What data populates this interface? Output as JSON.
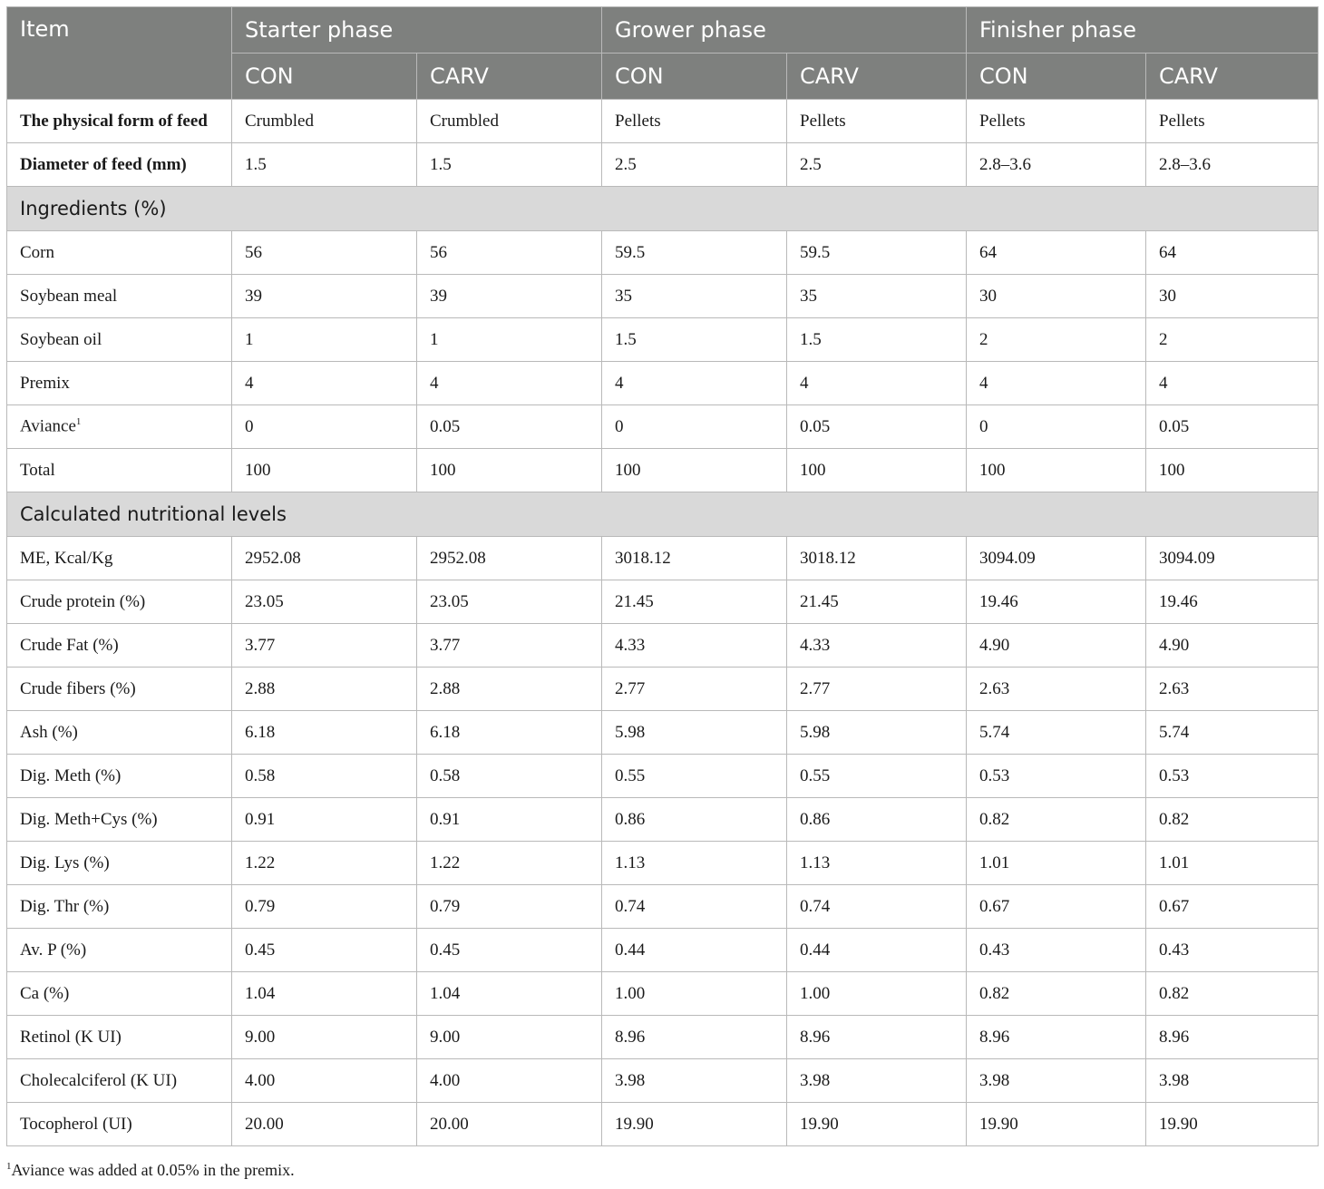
{
  "header": {
    "item": "Item",
    "phases": [
      "Starter phase",
      "Grower phase",
      "Finisher phase"
    ],
    "groups": [
      "CON",
      "CARV",
      "CON",
      "CARV",
      "CON",
      "CARV"
    ]
  },
  "feed_rows": [
    {
      "label": "The physical form of feed",
      "values": [
        "Crumbled",
        "Crumbled",
        "Pellets",
        "Pellets",
        "Pellets",
        "Pellets"
      ]
    },
    {
      "label": "Diameter of feed (mm)",
      "values": [
        "1.5",
        "1.5",
        "2.5",
        "2.5",
        "2.8–3.6",
        "2.8–3.6"
      ]
    }
  ],
  "sections": {
    "ingredients": "Ingredients (%)",
    "nutrition": "Calculated nutritional levels"
  },
  "ingredients": [
    {
      "label": "Corn",
      "values": [
        "56",
        "56",
        "59.5",
        "59.5",
        "64",
        "64"
      ]
    },
    {
      "label": "Soybean meal",
      "values": [
        "39",
        "39",
        "35",
        "35",
        "30",
        "30"
      ]
    },
    {
      "label": "Soybean oil",
      "values": [
        "1",
        "1",
        "1.5",
        "1.5",
        "2",
        "2"
      ]
    },
    {
      "label": "Premix",
      "values": [
        "4",
        "4",
        "4",
        "4",
        "4",
        "4"
      ]
    },
    {
      "label": "Aviance",
      "sup": "1",
      "values": [
        "0",
        "0.05",
        "0",
        "0.05",
        "0",
        "0.05"
      ]
    },
    {
      "label": "Total",
      "values": [
        "100",
        "100",
        "100",
        "100",
        "100",
        "100"
      ]
    }
  ],
  "nutrition": [
    {
      "label": "ME, Kcal/Kg",
      "values": [
        "2952.08",
        "2952.08",
        "3018.12",
        "3018.12",
        "3094.09",
        "3094.09"
      ]
    },
    {
      "label": "Crude protein (%)",
      "values": [
        "23.05",
        "23.05",
        "21.45",
        "21.45",
        "19.46",
        "19.46"
      ]
    },
    {
      "label": "Crude Fat (%)",
      "values": [
        "3.77",
        "3.77",
        "4.33",
        "4.33",
        "4.90",
        "4.90"
      ]
    },
    {
      "label": "Crude fibers (%)",
      "values": [
        "2.88",
        "2.88",
        "2.77",
        "2.77",
        "2.63",
        "2.63"
      ]
    },
    {
      "label": "Ash (%)",
      "values": [
        "6.18",
        "6.18",
        "5.98",
        "5.98",
        "5.74",
        "5.74"
      ]
    },
    {
      "label": "Dig. Meth (%)",
      "values": [
        "0.58",
        "0.58",
        "0.55",
        "0.55",
        "0.53",
        "0.53"
      ]
    },
    {
      "label": "Dig. Meth+Cys (%)",
      "values": [
        "0.91",
        "0.91",
        "0.86",
        "0.86",
        "0.82",
        "0.82"
      ]
    },
    {
      "label": "Dig. Lys (%)",
      "values": [
        "1.22",
        "1.22",
        "1.13",
        "1.13",
        "1.01",
        "1.01"
      ]
    },
    {
      "label": "Dig. Thr (%)",
      "values": [
        "0.79",
        "0.79",
        "0.74",
        "0.74",
        "0.67",
        "0.67"
      ]
    },
    {
      "label": "Av. P (%)",
      "values": [
        "0.45",
        "0.45",
        "0.44",
        "0.44",
        "0.43",
        "0.43"
      ]
    },
    {
      "label": "Ca (%)",
      "values": [
        "1.04",
        "1.04",
        "1.00",
        "1.00",
        "0.82",
        "0.82"
      ]
    },
    {
      "label": "Retinol (K UI)",
      "values": [
        "9.00",
        "9.00",
        "8.96",
        "8.96",
        "8.96",
        "8.96"
      ]
    },
    {
      "label": "Cholecalciferol (K UI)",
      "values": [
        "4.00",
        "4.00",
        "3.98",
        "3.98",
        "3.98",
        "3.98"
      ]
    },
    {
      "label": "Tocopherol (UI)",
      "values": [
        "20.00",
        "20.00",
        "19.90",
        "19.90",
        "19.90",
        "19.90"
      ]
    }
  ],
  "footnote": {
    "marker": "1",
    "text": "Aviance was added at 0.05% in the premix."
  }
}
